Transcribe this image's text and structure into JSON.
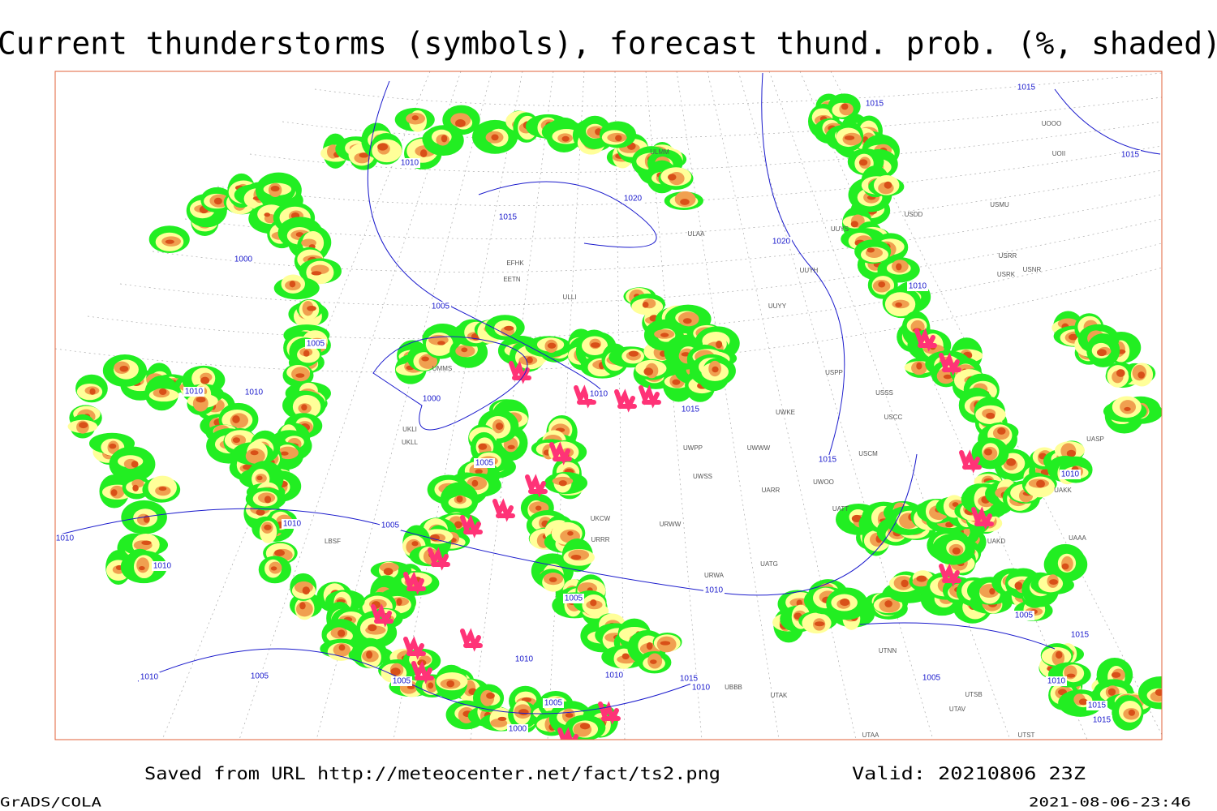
{
  "header": {
    "title": "Current thunderstorms (symbols), forecast thund. prob. (%, shaded)"
  },
  "footer": {
    "source": "Saved from URL http://meteocenter.net/fact/ts2.png",
    "valid": "Valid: 20210806 23Z",
    "software": "GrADS/COLA",
    "timestamp": "2021-08-06-23:46"
  },
  "map": {
    "isobar_labels": [
      "1015",
      "1015",
      "1015",
      "1010",
      "1020",
      "1015",
      "1020",
      "1000",
      "1005",
      "1010",
      "1005",
      "1010",
      "1010",
      "1010",
      "1000",
      "1015",
      "1005",
      "1015",
      "1010",
      "1010",
      "1010",
      "1005",
      "1010",
      "1010",
      "1005",
      "1005",
      "1015",
      "1010",
      "1005",
      "1010",
      "1010",
      "1005",
      "1005",
      "1015",
      "1010",
      "1010",
      "1015",
      "1015",
      "1005",
      "1000"
    ],
    "stations": [
      "EFHK",
      "EETN",
      "ULLI",
      "ULAA",
      "UUYS",
      "UUYH",
      "UUYY",
      "USSS",
      "USCC",
      "USCM",
      "UWKE",
      "UWWW",
      "UWOO",
      "UARR",
      "USPP",
      "UWPP",
      "UWSS",
      "URWW",
      "URRR",
      "UKCW",
      "URWA",
      "UATG",
      "UATT",
      "UTNN",
      "UTAK",
      "UTAA",
      "UTAV",
      "USDD",
      "USMU",
      "USRR",
      "USRK",
      "USNR",
      "UOOO",
      "UOII",
      "UASP",
      "UAKK",
      "UAAA",
      "UAKD",
      "UBBB",
      "UTSB",
      "UTST",
      "LBSF",
      "ULMM",
      "UMMS",
      "UKLL",
      "UKLI"
    ]
  }
}
